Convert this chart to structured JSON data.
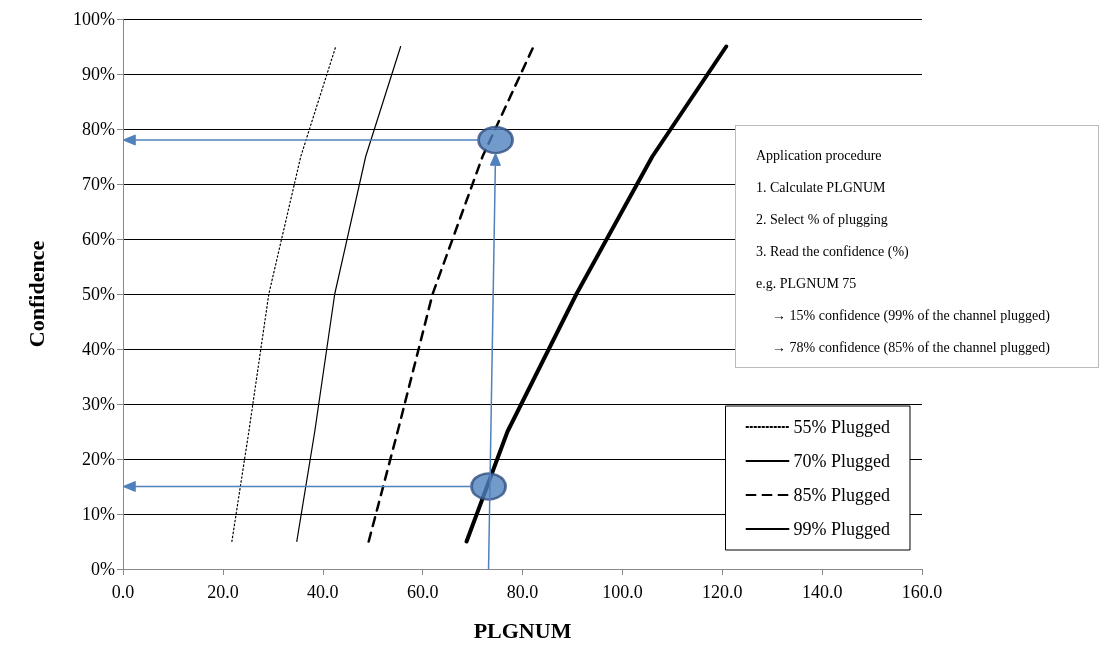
{
  "chart_data": {
    "type": "line",
    "xlabel": "PLGNUM",
    "ylabel": "Confidence",
    "xlim": [
      0,
      160
    ],
    "xticks": [
      {
        "value": 0,
        "label": "0.0"
      },
      {
        "value": 20,
        "label": "20.0"
      },
      {
        "value": 40,
        "label": "40.0"
      },
      {
        "value": 60,
        "label": "60.0"
      },
      {
        "value": 80,
        "label": "80.0"
      },
      {
        "value": 100,
        "label": "100.0"
      },
      {
        "value": 120,
        "label": "120.0"
      },
      {
        "value": 140,
        "label": "140.0"
      },
      {
        "value": 160,
        "label": "160.0"
      }
    ],
    "ylim": [
      0,
      100
    ],
    "yticks": [
      {
        "value": 0,
        "label": "0%"
      },
      {
        "value": 10,
        "label": "10%"
      },
      {
        "value": 20,
        "label": "20%"
      },
      {
        "value": 30,
        "label": "30%"
      },
      {
        "value": 40,
        "label": "40%"
      },
      {
        "value": 50,
        "label": "50%"
      },
      {
        "value": 60,
        "label": "60%"
      },
      {
        "value": 70,
        "label": "70%"
      },
      {
        "value": 80,
        "label": "80%"
      },
      {
        "value": 90,
        "label": "90%"
      },
      {
        "value": 100,
        "label": "100%"
      }
    ],
    "grid": "y",
    "legend": "bottom right",
    "series": [
      {
        "name": "55% Plugged",
        "color": "#000000",
        "line_style": "dotted",
        "x": [
          21.8,
          25.2,
          29.2,
          35.6,
          42.6
        ],
        "values": [
          5,
          25,
          50,
          75,
          95
        ]
      },
      {
        "name": "70% Plugged",
        "color": "#000000",
        "line_style": "solid",
        "x": [
          34.8,
          38.4,
          42.4,
          48.6,
          55.6
        ],
        "values": [
          5,
          25,
          50,
          75,
          95
        ]
      },
      {
        "name": "85% Plugged",
        "color": "#000000",
        "line_style": "dashed",
        "x": [
          49.2,
          55,
          62,
          72,
          82.2
        ],
        "values": [
          5,
          25,
          50,
          75,
          95
        ]
      },
      {
        "name": "99% Plugged",
        "color": "#000000",
        "line_style": "solid",
        "x": [
          68.8,
          77,
          90.8,
          106,
          120.8
        ],
        "values": [
          5,
          25,
          50,
          75,
          95
        ]
      },
      {
        "type": "scatter",
        "color": "#4f81bd",
        "marker": "circle",
        "x": [
          73.2,
          74.6
        ],
        "values": [
          15,
          78
        ]
      }
    ],
    "annotations": [
      "Application procedure",
      "1. Calculate PLGNUM",
      "2. Select % of plugging",
      "3. Read the confidence (%)",
      "e.g. PLGNUM 75",
      "→ 15% confidence  (99% of the channel plugged)",
      "→ 78% confidence (85% of the channel plugged)"
    ]
  }
}
